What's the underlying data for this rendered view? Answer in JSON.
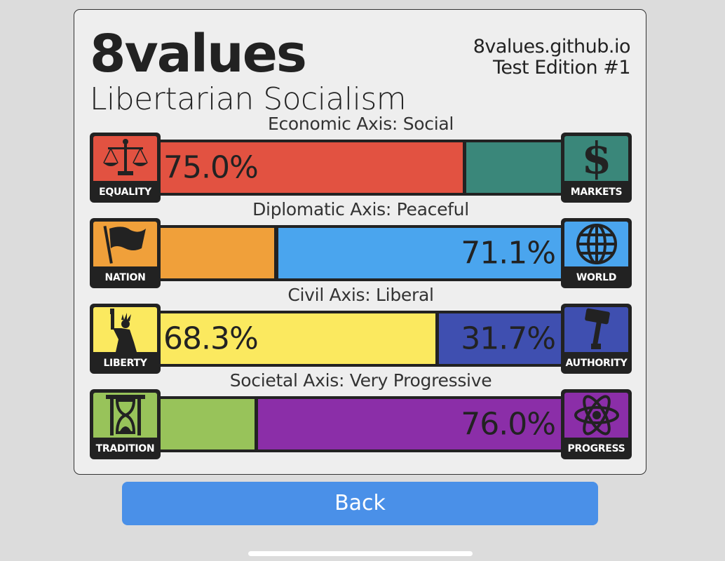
{
  "header": {
    "title": "8values",
    "ideology": "Libertarian Socialism",
    "site": "8values.github.io",
    "edition": "Test Edition #1"
  },
  "axes": [
    {
      "label": "Economic Axis: Social",
      "left_name": "EQUALITY",
      "right_name": "MARKETS",
      "left_icon": "scales-icon",
      "right_icon": "dollar-icon",
      "left_value": 75.0,
      "right_value": 25.0,
      "left_text": "75.0%",
      "right_text": "",
      "left_color": "#e25241",
      "right_color": "#3a877a"
    },
    {
      "label": "Diplomatic Axis: Peaceful",
      "left_name": "NATION",
      "right_name": "WORLD",
      "left_icon": "flag-icon",
      "right_icon": "globe-icon",
      "left_value": 28.9,
      "right_value": 71.1,
      "left_text": "",
      "right_text": "71.1%",
      "left_color": "#f0a03a",
      "right_color": "#4aa5ee"
    },
    {
      "label": "Civil Axis: Liberal",
      "left_name": "LIBERTY",
      "right_name": "AUTHORITY",
      "left_icon": "statue-of-liberty-icon",
      "right_icon": "gavel-icon",
      "left_value": 68.3,
      "right_value": 31.7,
      "left_text": "68.3%",
      "right_text": "31.7%",
      "left_color": "#fbe95f",
      "right_color": "#3f4fb0"
    },
    {
      "label": "Societal Axis: Very Progressive",
      "left_name": "TRADITION",
      "right_name": "PROGRESS",
      "left_icon": "hourglass-icon",
      "right_icon": "atom-icon",
      "left_value": 24.0,
      "right_value": 76.0,
      "left_text": "",
      "right_text": "76.0%",
      "left_color": "#98c35a",
      "right_color": "#8b2ea8"
    }
  ],
  "back_button": {
    "label": "Back",
    "color": "#4a90e8"
  }
}
